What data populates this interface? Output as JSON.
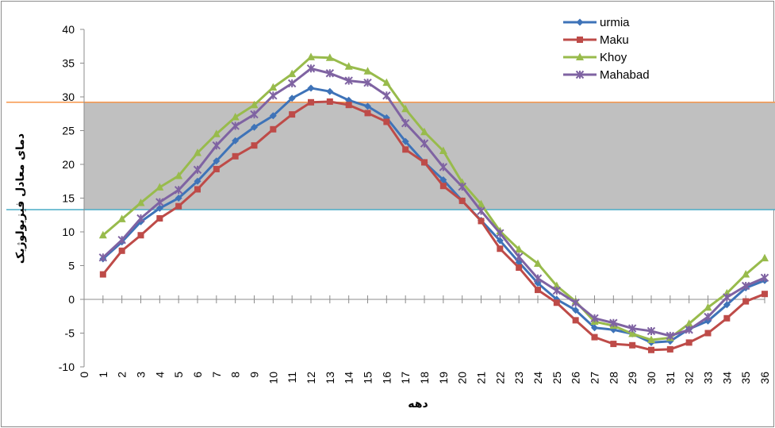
{
  "chart_data": {
    "type": "line",
    "title": "",
    "xlabel": "دهه",
    "ylabel": "دمای معادل فیزیولوژیک",
    "xlim": [
      0,
      36
    ],
    "ylim": [
      -10,
      40
    ],
    "ytick_step": 5,
    "legend_position": "top-right",
    "comfort_band": {
      "lower": 13.3,
      "upper": 29.2,
      "fill_color": "#c0c0c0",
      "upper_color": "#f7964a",
      "lower_color": "#4aacc6"
    },
    "x_ticks": [
      "0",
      "1",
      "2",
      "3",
      "4",
      "5",
      "6",
      "7",
      "8",
      "9",
      "10",
      "11",
      "12",
      "13",
      "14",
      "15",
      "16",
      "17",
      "18",
      "19",
      "20",
      "21",
      "22",
      "23",
      "24",
      "25",
      "26",
      "27",
      "28",
      "29",
      "30",
      "31",
      "32",
      "33",
      "34",
      "35",
      "36"
    ],
    "x": [
      1,
      2,
      3,
      4,
      5,
      6,
      7,
      8,
      9,
      10,
      11,
      12,
      13,
      14,
      15,
      16,
      17,
      18,
      19,
      20,
      21,
      22,
      23,
      24,
      25,
      26,
      27,
      28,
      29,
      30,
      31,
      32,
      33,
      34,
      35,
      36
    ],
    "series": [
      {
        "name": "urmia",
        "color": "#3e73b8",
        "marker": "diamond",
        "values": [
          6,
          8.5,
          11.5,
          13.5,
          15,
          17.5,
          20.5,
          23.5,
          25.5,
          27.2,
          29.8,
          31.3,
          30.8,
          29.5,
          28.6,
          26.9,
          23.4,
          20.3,
          17.7,
          14.6,
          11.7,
          8.7,
          5.5,
          2.4,
          0,
          -1.6,
          -4.2,
          -4.5,
          -5.1,
          -6.4,
          -6.2,
          -4.4,
          -3.2,
          -0.8,
          1.7,
          2.8
        ]
      },
      {
        "name": "Maku",
        "color": "#be4b48",
        "marker": "square",
        "values": [
          3.7,
          7.2,
          9.5,
          12,
          13.8,
          16.3,
          19.3,
          21.2,
          22.8,
          25.2,
          27.4,
          29.2,
          29.3,
          28.8,
          27.6,
          26.3,
          22.2,
          20.3,
          16.8,
          14.6,
          11.6,
          7.5,
          4.7,
          1.4,
          -0.5,
          -3.1,
          -5.6,
          -6.6,
          -6.8,
          -7.5,
          -7.4,
          -6.4,
          -5,
          -2.8,
          -0.3,
          0.8
        ]
      },
      {
        "name": "Khoy",
        "color": "#98bb4c",
        "marker": "triangle",
        "values": [
          9.5,
          11.9,
          14.3,
          16.6,
          18.3,
          21.7,
          24.5,
          27,
          28.8,
          31.4,
          33.4,
          35.9,
          35.8,
          34.5,
          33.8,
          32.1,
          28.2,
          24.8,
          22,
          17.3,
          14.1,
          10.1,
          7.4,
          5.3,
          2,
          -0.3,
          -3.3,
          -3.9,
          -5.1,
          -6,
          -5.7,
          -3.6,
          -1.2,
          0.9,
          3.7,
          6.1
        ]
      },
      {
        "name": "Mahabad",
        "color": "#7f63a2",
        "marker": "x",
        "values": [
          6.2,
          8.8,
          12,
          14.4,
          16.2,
          19.2,
          22.8,
          25.7,
          27.4,
          30.2,
          32,
          34.2,
          33.5,
          32.4,
          32.1,
          30.2,
          26.1,
          23.1,
          19.6,
          16.7,
          13.1,
          9.8,
          6.3,
          3.1,
          1.3,
          -0.5,
          -2.8,
          -3.5,
          -4.3,
          -4.7,
          -5.4,
          -4.5,
          -2.6,
          0.3,
          2,
          3.2
        ]
      }
    ]
  }
}
